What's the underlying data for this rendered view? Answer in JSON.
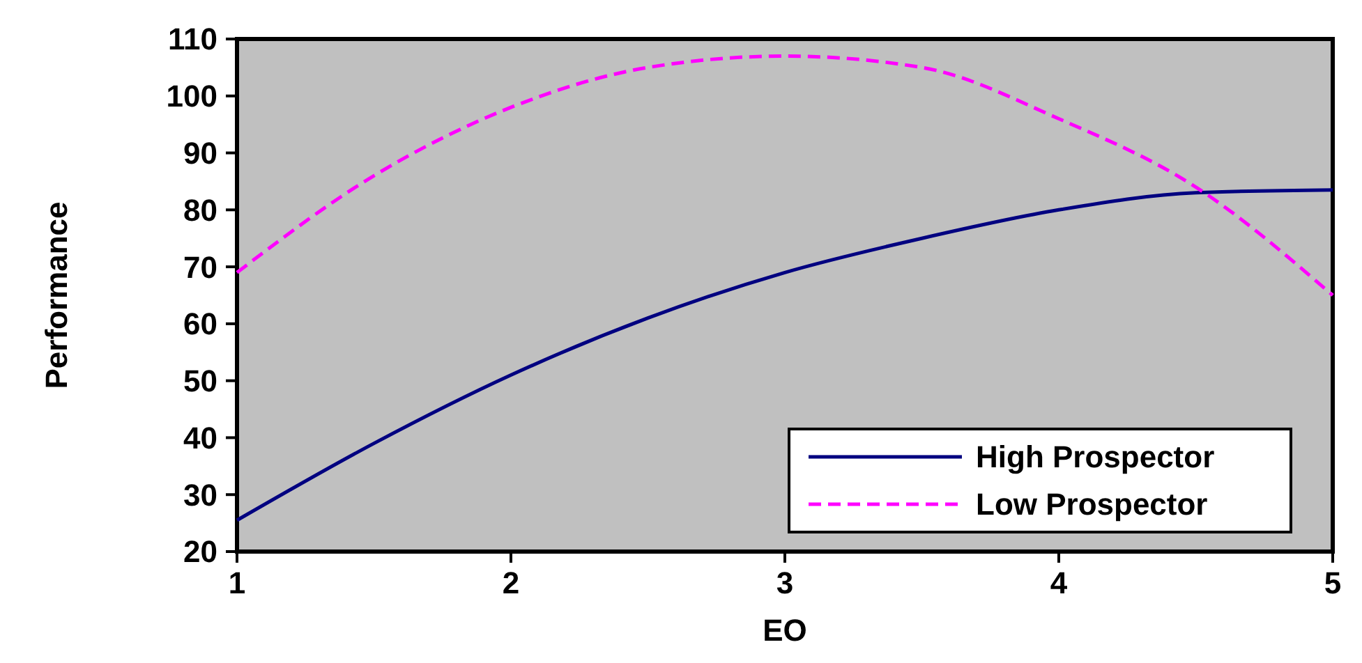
{
  "chart_data": {
    "type": "line",
    "xlabel": "EO",
    "ylabel": "Performance",
    "x": [
      1,
      1.5,
      2,
      2.5,
      3,
      3.5,
      4,
      4.5,
      5
    ],
    "series": [
      {
        "name": "High Prospector",
        "color": "#000080",
        "line_style": "solid",
        "values": [
          25.5,
          39,
          51,
          61,
          69,
          75,
          80,
          83,
          83.5
        ]
      },
      {
        "name": "Low Prospector",
        "color": "#ff00ff",
        "line_style": "dashed",
        "values": [
          69,
          86,
          98,
          105,
          107,
          105,
          96,
          84,
          65
        ]
      }
    ],
    "xlim": [
      1,
      5
    ],
    "xticks": [
      1,
      2,
      3,
      4,
      5
    ],
    "ylim": [
      20,
      110
    ],
    "yticks": [
      20,
      30,
      40,
      50,
      60,
      70,
      80,
      90,
      100,
      110
    ],
    "grid": false,
    "legend": "bottom right",
    "marker": "none"
  }
}
